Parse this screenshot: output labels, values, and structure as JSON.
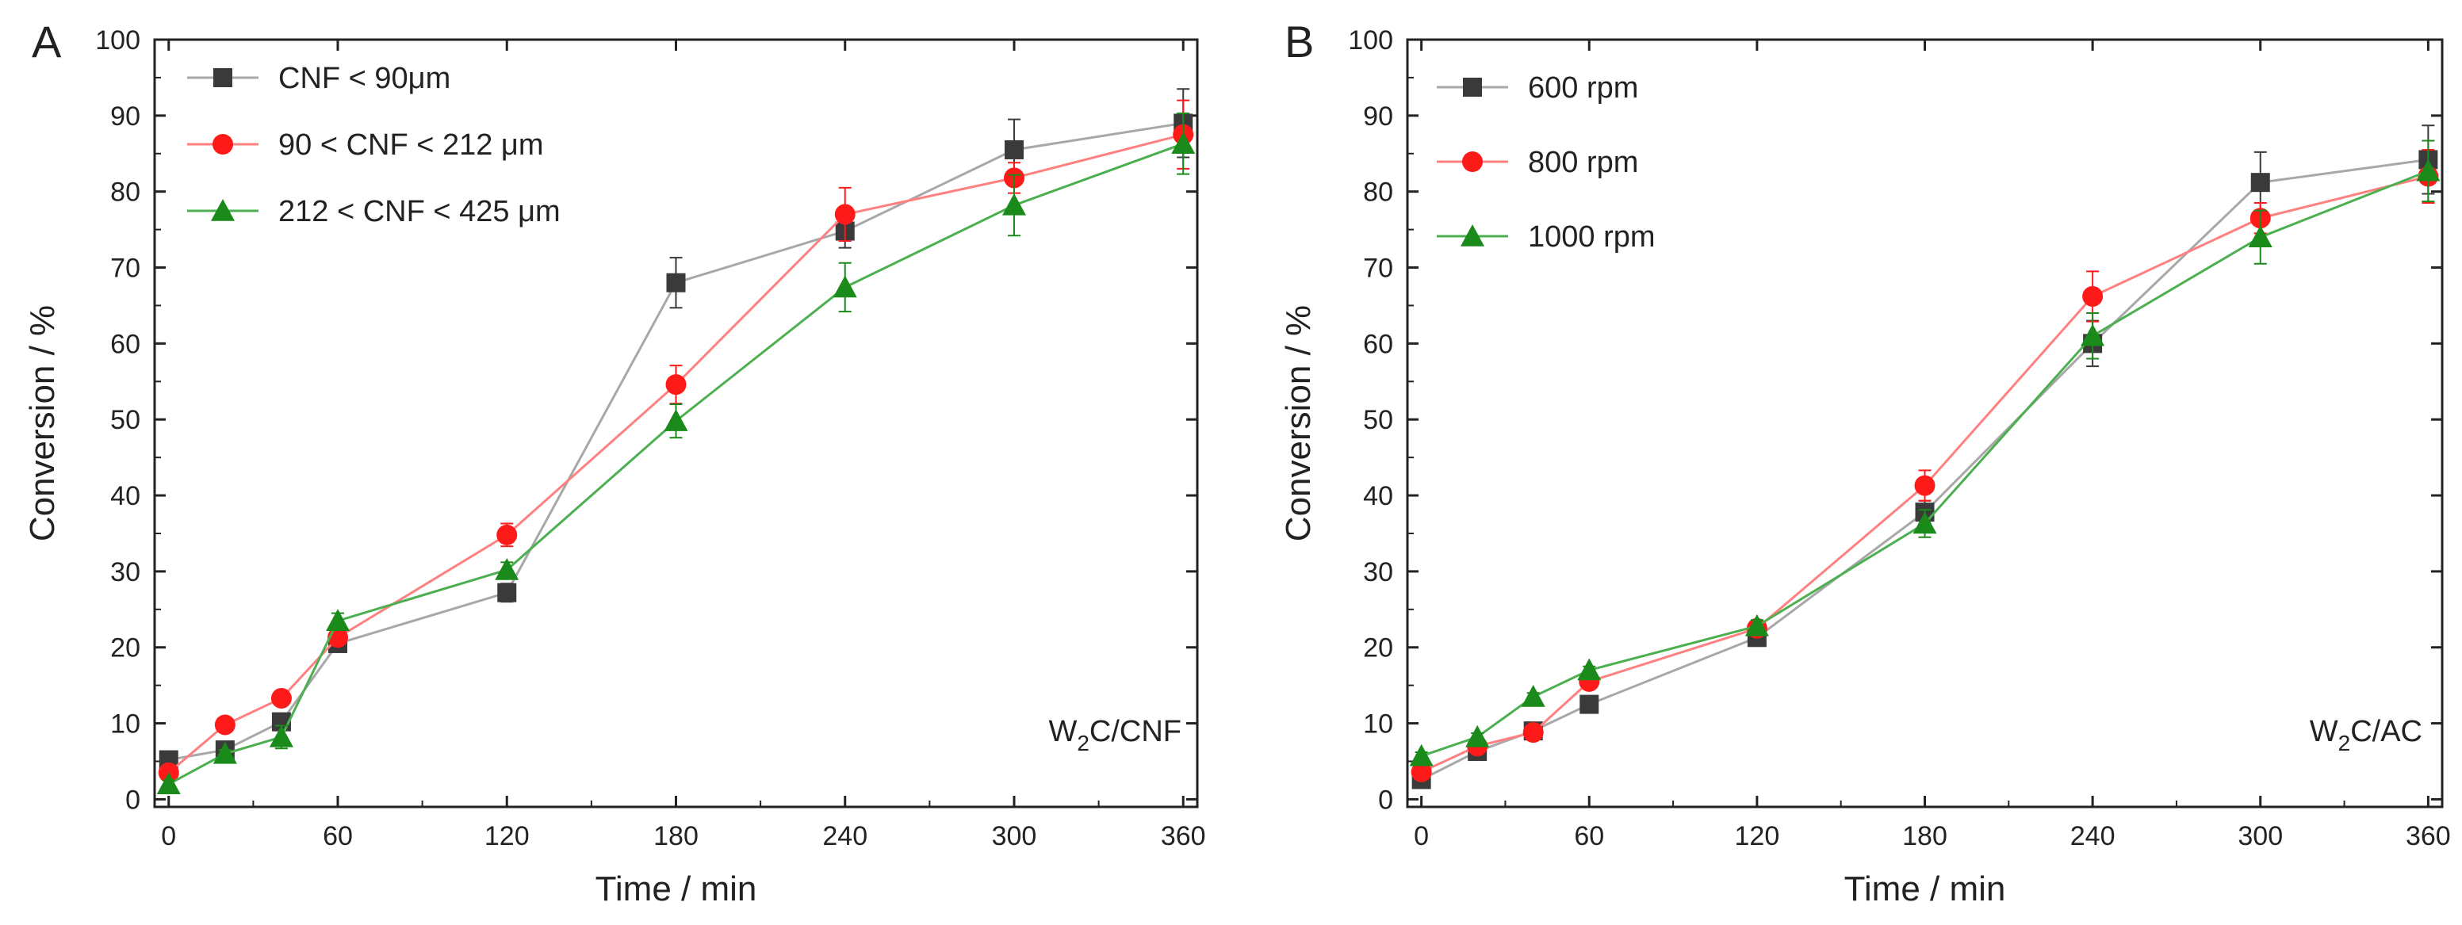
{
  "chart_data": [
    {
      "type": "line",
      "panel_label": "A",
      "catalyst_label": {
        "main": "W",
        "sub": "2",
        "rest": "C/CNF"
      },
      "xlabel": "Time / min",
      "ylabel": "Conversion / %",
      "xlim": [
        -5,
        365
      ],
      "ylim": [
        -1,
        100
      ],
      "xticks": [
        0,
        60,
        120,
        180,
        240,
        300,
        360
      ],
      "yticks": [
        0,
        10,
        20,
        30,
        40,
        50,
        60,
        70,
        80,
        90,
        100
      ],
      "legend_position": "top-left",
      "series": [
        {
          "name": "CNF < 90μm",
          "color": "#3a3a3a",
          "line_color": "#a8a8a8",
          "marker": "square",
          "x": [
            0,
            20,
            40,
            60,
            120,
            180,
            240,
            300,
            360
          ],
          "y": [
            5.2,
            6.5,
            10.2,
            20.5,
            27.2,
            68,
            74.8,
            85.5,
            89
          ],
          "err": [
            0.5,
            0.5,
            1,
            1,
            1.2,
            3.3,
            2.2,
            4,
            4.5
          ]
        },
        {
          "name": "90 < CNF < 212 μm",
          "color": "#ff1a1a",
          "line_color": "#ff8080",
          "marker": "circle",
          "x": [
            0,
            20,
            40,
            60,
            120,
            180,
            240,
            300,
            360
          ],
          "y": [
            3.5,
            9.8,
            13.3,
            21.3,
            34.8,
            54.6,
            77,
            81.8,
            87.5
          ],
          "err": [
            0.5,
            0.5,
            0.8,
            1,
            1.5,
            2.5,
            3.5,
            2,
            4.5
          ]
        },
        {
          "name": "212 < CNF < 425 μm",
          "color": "#1a8a1a",
          "line_color": "#4caf50",
          "marker": "triangle",
          "x": [
            0,
            20,
            40,
            60,
            120,
            180,
            240,
            300,
            360
          ],
          "y": [
            2,
            6,
            8.2,
            23.5,
            30.2,
            49.8,
            67.4,
            78.2,
            86.3
          ],
          "err": [
            0.5,
            0.5,
            1.5,
            1,
            1,
            2.2,
            3.2,
            4,
            4
          ]
        }
      ]
    },
    {
      "type": "line",
      "panel_label": "B",
      "catalyst_label": {
        "main": "W",
        "sub": "2",
        "rest": "C/AC"
      },
      "xlabel": "Time / min",
      "ylabel": "Conversion / %",
      "xlim": [
        -5,
        365
      ],
      "ylim": [
        -1,
        100
      ],
      "xticks": [
        0,
        60,
        120,
        180,
        240,
        300,
        360
      ],
      "yticks": [
        0,
        10,
        20,
        30,
        40,
        50,
        60,
        70,
        80,
        90,
        100
      ],
      "legend_position": "top-left",
      "series": [
        {
          "name": "600 rpm",
          "color": "#3a3a3a",
          "line_color": "#a8a8a8",
          "marker": "square",
          "x": [
            0,
            20,
            40,
            60,
            120,
            180,
            240,
            300,
            360
          ],
          "y": [
            2.6,
            6.3,
            9,
            12.5,
            21.3,
            37.8,
            60,
            81.2,
            84.2
          ],
          "err": [
            0.5,
            0.5,
            0.5,
            0.5,
            0.8,
            1.5,
            3,
            4,
            4.5
          ]
        },
        {
          "name": "800 rpm",
          "color": "#ff1a1a",
          "line_color": "#ff8080",
          "marker": "circle",
          "x": [
            0,
            20,
            40,
            60,
            120,
            180,
            240,
            300,
            360
          ],
          "y": [
            3.6,
            7,
            8.8,
            15.5,
            22.5,
            41.3,
            66.2,
            76.5,
            82
          ],
          "err": [
            0.5,
            0.5,
            0.5,
            1,
            1,
            2,
            3.3,
            2,
            3.5
          ]
        },
        {
          "name": "1000 rpm",
          "color": "#1a8a1a",
          "line_color": "#4caf50",
          "marker": "triangle",
          "x": [
            0,
            20,
            40,
            60,
            120,
            180,
            240,
            300,
            360
          ],
          "y": [
            5.7,
            8.2,
            13.5,
            17,
            22.8,
            36.3,
            61,
            74,
            82.7
          ],
          "err": [
            0.5,
            0.5,
            0.5,
            0.5,
            0.8,
            1.8,
            3,
            3.5,
            4
          ]
        }
      ]
    }
  ]
}
